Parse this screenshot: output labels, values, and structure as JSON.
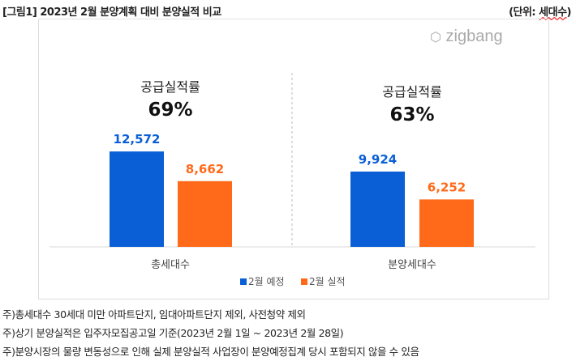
{
  "title": "[그림1] 2023년 2월 분양계획 대비 분양실적 비교",
  "unit_prefix": "(단위: ",
  "unit_word": "세대수",
  "unit_suffix": ")",
  "logo": "zigbang",
  "chart_data": {
    "type": "bar",
    "categories": [
      "총세대수",
      "분양세대수"
    ],
    "series": [
      {
        "name": "2월 예정",
        "values": [
          12572,
          8662
        ],
        "color": "#0a5fd6"
      },
      {
        "name": "2월 실적",
        "values": [
          9924,
          6252
        ],
        "color": "#ff6a1a"
      }
    ],
    "group_values": [
      [
        12572,
        8662
      ],
      [
        9924,
        6252
      ]
    ],
    "data_labels": [
      [
        "12,572",
        "8,662"
      ],
      [
        "9,924",
        "6,252"
      ]
    ],
    "annotations": [
      {
        "label": "공급실적률",
        "value": "69%"
      },
      {
        "label": "공급실적률",
        "value": "63%"
      }
    ],
    "ylim": [
      0,
      16000
    ],
    "grid": false,
    "legend_position": "bottom"
  },
  "notes": [
    "주)총세대수 30세대 미만 아파트단지, 임대아파트단지 제외, 사전청약 제외",
    "주)상기 분양실적은 입주자모집공고일 기준(2023년 2월 1일 ~ 2023년 2월 28일)",
    "주)분양시장의 물량 변동성으로 인해 실제 분양실적 사업장이 분양예정집계 당시 포함되지 않을 수 있음"
  ]
}
